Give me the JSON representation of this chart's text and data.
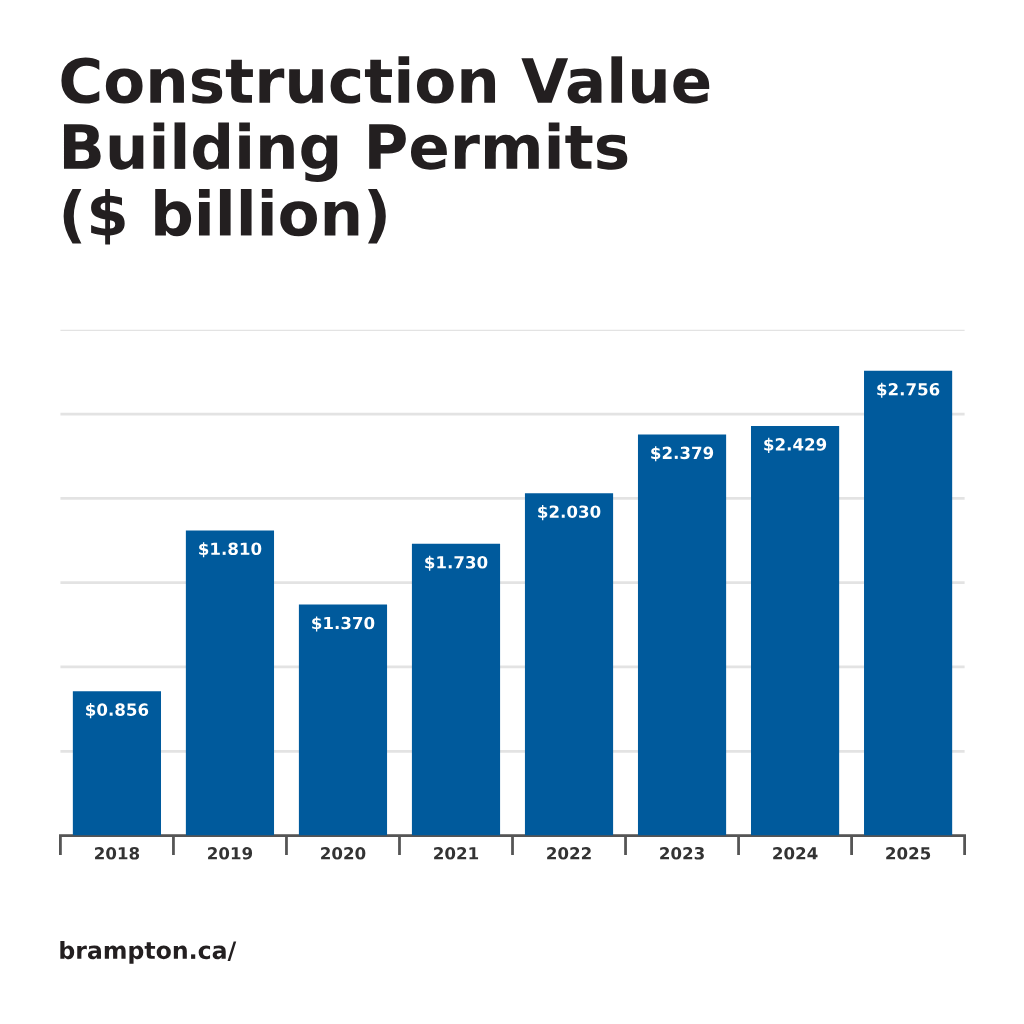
{
  "chart_data": {
    "type": "bar",
    "title": "Construction Value\nBuilding Permits\n($ billion)",
    "categories": [
      "2018",
      "2019",
      "2020",
      "2021",
      "2022",
      "2023",
      "2024",
      "2025"
    ],
    "values": [
      0.856,
      1.81,
      1.37,
      1.73,
      2.03,
      2.379,
      2.429,
      2.756
    ],
    "value_labels": [
      "$0.856",
      "$1.810",
      "$1.370",
      "$1.730",
      "$2.030",
      "$2.379",
      "$2.429",
      "$2.756"
    ],
    "color": "#005a9c",
    "ylim": [
      0,
      3
    ],
    "yticks": [
      {
        "value": 0,
        "label": null
      },
      {
        "value": 0.5,
        "label": null
      },
      {
        "value": 1,
        "label": null
      },
      {
        "value": 1.5,
        "label": null
      },
      {
        "value": 2,
        "label": null
      },
      {
        "value": 2.5,
        "label": null
      },
      {
        "value": 3,
        "label": null
      }
    ],
    "tick_labels": "x",
    "grid": "y",
    "legend": false,
    "annotations": [
      "brampton.ca/"
    ]
  }
}
